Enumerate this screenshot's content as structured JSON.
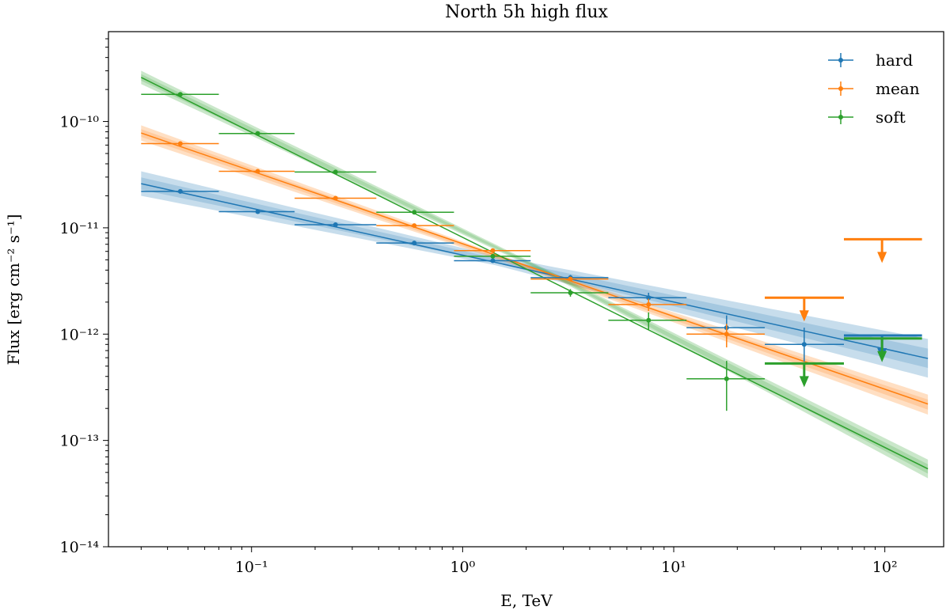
{
  "chart_data": {
    "type": "scatter",
    "title": "North 5h high flux",
    "xlabel": "E, TeV",
    "ylabel": "Flux [erg cm⁻² s⁻¹]",
    "xscale": "log",
    "yscale": "log",
    "xlim": [
      0.021,
      190
    ],
    "ylim": [
      1e-14,
      7e-10
    ],
    "x_ticks": [
      {
        "value": 0.1,
        "label": "10⁻¹"
      },
      {
        "value": 1,
        "label": "10⁰"
      },
      {
        "value": 10,
        "label": "10¹"
      },
      {
        "value": 100,
        "label": "10²"
      }
    ],
    "y_ticks": [
      {
        "value": 1e-14,
        "label": "10⁻¹⁴"
      },
      {
        "value": 1e-13,
        "label": "10⁻¹³"
      },
      {
        "value": 1e-12,
        "label": "10⁻¹²"
      },
      {
        "value": 1e-11,
        "label": "10⁻¹¹"
      },
      {
        "value": 1e-10,
        "label": "10⁻¹⁰"
      }
    ],
    "legend_position": "top-right",
    "series": [
      {
        "name": "hard",
        "color": "#1f77b4",
        "model_line": {
          "x": [
            0.03,
            160
          ],
          "y": [
            2.6e-11,
            5.9e-13
          ]
        },
        "band": {
          "x": [
            0.03,
            1.4,
            160
          ],
          "upper": [
            3.4e-11,
            5.5e-12,
            9e-13
          ],
          "lower": [
            2e-11,
            4.5e-12,
            3.9e-13
          ]
        },
        "points": [
          {
            "x": 0.046,
            "xlo": 0.03,
            "xhi": 0.07,
            "y": 2.2e-11,
            "ylo": 2.1e-11,
            "yhi": 2.3e-11
          },
          {
            "x": 0.107,
            "xlo": 0.07,
            "xhi": 0.16,
            "y": 1.42e-11,
            "ylo": 1.36e-11,
            "yhi": 1.48e-11
          },
          {
            "x": 0.25,
            "xlo": 0.16,
            "xhi": 0.39,
            "y": 1.07e-11,
            "ylo": 1.03e-11,
            "yhi": 1.11e-11
          },
          {
            "x": 0.59,
            "xlo": 0.39,
            "xhi": 0.91,
            "y": 7.2e-12,
            "ylo": 6.9e-12,
            "yhi": 7.5e-12
          },
          {
            "x": 1.39,
            "xlo": 0.91,
            "xhi": 2.1,
            "y": 4.9e-12,
            "ylo": 4.7e-12,
            "yhi": 5.1e-12
          },
          {
            "x": 3.24,
            "xlo": 2.1,
            "xhi": 4.9,
            "y": 3.4e-12,
            "ylo": 3.2e-12,
            "yhi": 3.6e-12
          },
          {
            "x": 7.6,
            "xlo": 4.9,
            "xhi": 11.5,
            "y": 2.2e-12,
            "ylo": 1.95e-12,
            "yhi": 2.45e-12
          },
          {
            "x": 17.8,
            "xlo": 11.5,
            "xhi": 27,
            "y": 1.15e-12,
            "ylo": 9e-13,
            "yhi": 1.5e-12
          },
          {
            "x": 41.5,
            "xlo": 27,
            "xhi": 64,
            "y": 8e-13,
            "ylo": 5.5e-13,
            "yhi": 1.15e-12
          }
        ],
        "upper_limits": [
          {
            "x": 97,
            "xlo": 64,
            "xhi": 150,
            "y": 9.7e-13
          }
        ]
      },
      {
        "name": "mean",
        "color": "#ff7f0e",
        "model_line": {
          "x": [
            0.03,
            160
          ],
          "y": [
            7.8e-11,
            2.2e-13
          ]
        },
        "band": {
          "x": [
            0.03,
            2.0,
            160
          ],
          "upper": [
            9.2e-11,
            4.5e-12,
            2.7e-13
          ],
          "lower": [
            6.6e-11,
            4.1e-12,
            1.75e-13
          ]
        },
        "points": [
          {
            "x": 0.046,
            "xlo": 0.03,
            "xhi": 0.07,
            "y": 6.2e-11,
            "ylo": 6e-11,
            "yhi": 6.4e-11
          },
          {
            "x": 0.107,
            "xlo": 0.07,
            "xhi": 0.16,
            "y": 3.4e-11,
            "ylo": 3.3e-11,
            "yhi": 3.5e-11
          },
          {
            "x": 0.25,
            "xlo": 0.16,
            "xhi": 0.39,
            "y": 1.9e-11,
            "ylo": 1.84e-11,
            "yhi": 1.96e-11
          },
          {
            "x": 0.59,
            "xlo": 0.39,
            "xhi": 0.91,
            "y": 1.05e-11,
            "ylo": 1.02e-11,
            "yhi": 1.08e-11
          },
          {
            "x": 1.39,
            "xlo": 0.91,
            "xhi": 2.1,
            "y": 6.1e-12,
            "ylo": 5.9e-12,
            "yhi": 6.3e-12
          },
          {
            "x": 3.24,
            "xlo": 2.1,
            "xhi": 4.9,
            "y": 3.3e-12,
            "ylo": 3.15e-12,
            "yhi": 3.45e-12
          },
          {
            "x": 7.6,
            "xlo": 4.9,
            "xhi": 11.5,
            "y": 1.9e-12,
            "ylo": 1.65e-12,
            "yhi": 2.15e-12
          },
          {
            "x": 17.8,
            "xlo": 11.5,
            "xhi": 27,
            "y": 1e-12,
            "ylo": 7.5e-13,
            "yhi": 1.25e-12
          }
        ],
        "upper_limits": [
          {
            "x": 41.5,
            "xlo": 27,
            "xhi": 64,
            "y": 2.2e-12
          },
          {
            "x": 97,
            "xlo": 64,
            "xhi": 150,
            "y": 7.8e-12
          }
        ]
      },
      {
        "name": "soft",
        "color": "#2ca02c",
        "model_line": {
          "x": [
            0.03,
            160
          ],
          "y": [
            2.6e-10,
            5.4e-14
          ]
        },
        "band": {
          "x": [
            0.03,
            2.5,
            160
          ],
          "upper": [
            3e-10,
            4.05e-12,
            6.6e-14
          ],
          "lower": [
            2.25e-10,
            3.7e-12,
            4.4e-14
          ]
        },
        "points": [
          {
            "x": 0.046,
            "xlo": 0.03,
            "xhi": 0.07,
            "y": 1.8e-10,
            "ylo": 1.76e-10,
            "yhi": 1.84e-10
          },
          {
            "x": 0.107,
            "xlo": 0.07,
            "xhi": 0.16,
            "y": 7.7e-11,
            "ylo": 7.5e-11,
            "yhi": 7.9e-11
          },
          {
            "x": 0.25,
            "xlo": 0.16,
            "xhi": 0.39,
            "y": 3.35e-11,
            "ylo": 3.25e-11,
            "yhi": 3.45e-11
          },
          {
            "x": 0.59,
            "xlo": 0.39,
            "xhi": 0.91,
            "y": 1.4e-11,
            "ylo": 1.36e-11,
            "yhi": 1.44e-11
          },
          {
            "x": 1.39,
            "xlo": 0.91,
            "xhi": 2.1,
            "y": 5.4e-12,
            "ylo": 5.2e-12,
            "yhi": 5.6e-12
          },
          {
            "x": 3.24,
            "xlo": 2.1,
            "xhi": 4.9,
            "y": 2.45e-12,
            "ylo": 2.25e-12,
            "yhi": 2.65e-12
          },
          {
            "x": 7.6,
            "xlo": 4.9,
            "xhi": 11.5,
            "y": 1.35e-12,
            "ylo": 1.1e-12,
            "yhi": 1.6e-12
          },
          {
            "x": 17.8,
            "xlo": 11.5,
            "xhi": 27,
            "y": 3.8e-13,
            "ylo": 1.9e-13,
            "yhi": 5.6e-13
          }
        ],
        "upper_limits": [
          {
            "x": 41.5,
            "xlo": 27,
            "xhi": 64,
            "y": 5.3e-13
          },
          {
            "x": 97,
            "xlo": 64,
            "xhi": 150,
            "y": 9.1e-13
          }
        ]
      }
    ]
  }
}
